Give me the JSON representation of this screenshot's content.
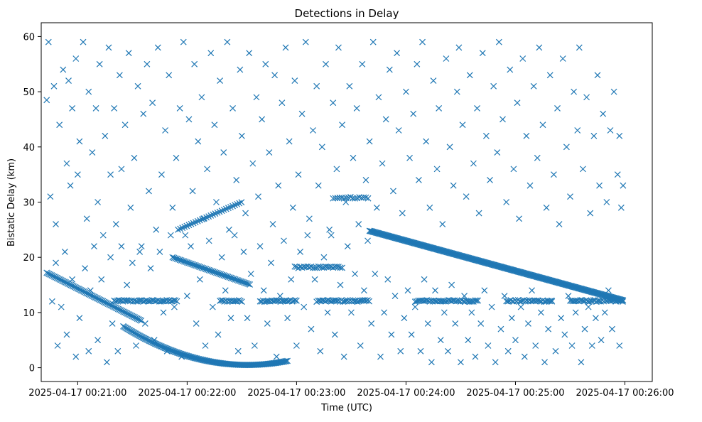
{
  "chart_data": {
    "type": "scatter",
    "title": "Detections in Delay",
    "xlabel": "Time (UTC)",
    "ylabel": "Bistatic Delay (km)",
    "marker": "x",
    "color": "#1f77b4",
    "xlim_seconds": [
      -20,
      315
    ],
    "ylim": [
      -2.5,
      62.5
    ],
    "x_ticks": [
      {
        "t": 0,
        "label": "2025-04-17 00:21:00"
      },
      {
        "t": 60,
        "label": "2025-04-17 00:22:00"
      },
      {
        "t": 120,
        "label": "2025-04-17 00:23:00"
      },
      {
        "t": 180,
        "label": "2025-04-17 00:24:00"
      },
      {
        "t": 240,
        "label": "2025-04-17 00:25:00"
      },
      {
        "t": 300,
        "label": "2025-04-17 00:26:00"
      }
    ],
    "y_ticks": [
      0,
      10,
      20,
      30,
      40,
      50,
      60
    ],
    "x_range_seconds_of_data": [
      -17,
      299
    ],
    "x_unit_note": "t = seconds after 2025-04-17 00:21:00 UTC",
    "tracks": [
      {
        "name": "descending track A",
        "x_start": -17,
        "x_end": 35,
        "y_start": 17.2,
        "y_end": 8.5,
        "step": 0.7
      },
      {
        "name": "U-shaped track",
        "x_start": 25,
        "x_end": 115,
        "y_min": 0.5,
        "x_vertex": 93,
        "y_at_start": 7.5,
        "step": 0.6
      },
      {
        "name": "descending track B",
        "x_start": 52,
        "x_end": 95,
        "y_start": 20,
        "y_end": 15,
        "step": 0.8
      },
      {
        "name": "rising track",
        "x_start": 55,
        "x_end": 90,
        "y_start": 25,
        "y_end": 30,
        "step": 1.2
      },
      {
        "name": "long descending track",
        "x_start": 160,
        "x_end": 299,
        "y_start": 24.8,
        "y_end": 12.2,
        "step": 0.5
      },
      {
        "name": "flat track at 12 km",
        "x_start": 20,
        "x_end": 299,
        "y": 12.1,
        "segments": [
          [
            20,
            55
          ],
          [
            78,
            90
          ],
          [
            100,
            120
          ],
          [
            131,
            160
          ],
          [
            185,
            220
          ],
          [
            235,
            260
          ],
          [
            270,
            299
          ]
        ],
        "step": 0.8
      },
      {
        "name": "flat track at 18 km",
        "x_start": 119,
        "x_end": 145,
        "y": 18.2,
        "step": 1.0
      },
      {
        "name": "flat track at 31 km",
        "x_start": 140,
        "x_end": 160,
        "y": 30.8,
        "step": 1.2
      }
    ],
    "noise_points": [
      [
        -17,
        48.5
      ],
      [
        -16,
        59
      ],
      [
        -15,
        31
      ],
      [
        -13,
        51
      ],
      [
        -12,
        26
      ],
      [
        -10,
        44
      ],
      [
        -8,
        54
      ],
      [
        -6,
        37
      ],
      [
        -5,
        52
      ],
      [
        -4,
        33
      ],
      [
        -3,
        47
      ],
      [
        -1,
        56
      ],
      [
        0,
        35
      ],
      [
        1,
        41
      ],
      [
        3,
        59
      ],
      [
        5,
        27
      ],
      [
        6,
        50
      ],
      [
        8,
        39
      ],
      [
        10,
        47
      ],
      [
        11,
        30
      ],
      [
        12,
        55
      ],
      [
        14,
        24
      ],
      [
        15,
        42
      ],
      [
        17,
        58
      ],
      [
        18,
        35
      ],
      [
        20,
        47
      ],
      [
        21,
        26
      ],
      [
        23,
        53
      ],
      [
        24,
        36
      ],
      [
        26,
        44
      ],
      [
        28,
        57
      ],
      [
        29,
        29
      ],
      [
        31,
        38
      ],
      [
        33,
        51
      ],
      [
        34,
        21
      ],
      [
        36,
        46
      ],
      [
        38,
        55
      ],
      [
        39,
        32
      ],
      [
        41,
        48
      ],
      [
        43,
        25
      ],
      [
        44,
        58
      ],
      [
        46,
        35
      ],
      [
        48,
        43
      ],
      [
        50,
        53
      ],
      [
        52,
        29
      ],
      [
        54,
        38
      ],
      [
        56,
        47
      ],
      [
        58,
        59
      ],
      [
        59,
        24
      ],
      [
        61,
        45
      ],
      [
        63,
        32
      ],
      [
        64,
        55
      ],
      [
        66,
        41
      ],
      [
        68,
        49
      ],
      [
        69,
        27
      ],
      [
        71,
        36
      ],
      [
        73,
        57
      ],
      [
        75,
        44
      ],
      [
        76,
        30
      ],
      [
        78,
        52
      ],
      [
        80,
        39
      ],
      [
        82,
        59
      ],
      [
        83,
        25
      ],
      [
        85,
        47
      ],
      [
        87,
        34
      ],
      [
        89,
        54
      ],
      [
        90,
        42
      ],
      [
        92,
        28
      ],
      [
        94,
        57
      ],
      [
        96,
        37
      ],
      [
        98,
        49
      ],
      [
        99,
        31
      ],
      [
        101,
        45
      ],
      [
        103,
        55
      ],
      [
        105,
        39
      ],
      [
        107,
        26
      ],
      [
        108,
        53
      ],
      [
        110,
        33
      ],
      [
        112,
        48
      ],
      [
        114,
        58
      ],
      [
        116,
        41
      ],
      [
        118,
        29
      ],
      [
        119,
        52
      ],
      [
        121,
        35
      ],
      [
        123,
        46
      ],
      [
        125,
        59
      ],
      [
        127,
        27
      ],
      [
        129,
        43
      ],
      [
        131,
        51
      ],
      [
        132,
        33
      ],
      [
        134,
        40
      ],
      [
        136,
        55
      ],
      [
        138,
        25
      ],
      [
        140,
        48
      ],
      [
        142,
        36
      ],
      [
        143,
        58
      ],
      [
        145,
        44
      ],
      [
        147,
        30
      ],
      [
        149,
        51
      ],
      [
        151,
        38
      ],
      [
        153,
        47
      ],
      [
        154,
        26
      ],
      [
        156,
        55
      ],
      [
        158,
        34
      ],
      [
        160,
        41
      ],
      [
        162,
        59
      ],
      [
        164,
        29
      ],
      [
        165,
        49
      ],
      [
        167,
        37
      ],
      [
        169,
        45
      ],
      [
        171,
        54
      ],
      [
        173,
        32
      ],
      [
        175,
        57
      ],
      [
        176,
        43
      ],
      [
        178,
        28
      ],
      [
        180,
        50
      ],
      [
        182,
        38
      ],
      [
        184,
        46
      ],
      [
        186,
        55
      ],
      [
        187,
        34
      ],
      [
        189,
        59
      ],
      [
        191,
        41
      ],
      [
        193,
        29
      ],
      [
        195,
        52
      ],
      [
        197,
        36
      ],
      [
        198,
        47
      ],
      [
        200,
        26
      ],
      [
        202,
        56
      ],
      [
        204,
        40
      ],
      [
        206,
        33
      ],
      [
        208,
        50
      ],
      [
        209,
        58
      ],
      [
        211,
        44
      ],
      [
        213,
        31
      ],
      [
        215,
        53
      ],
      [
        217,
        37
      ],
      [
        219,
        47
      ],
      [
        220,
        28
      ],
      [
        222,
        57
      ],
      [
        224,
        42
      ],
      [
        226,
        34
      ],
      [
        228,
        51
      ],
      [
        230,
        39
      ],
      [
        231,
        59
      ],
      [
        233,
        45
      ],
      [
        235,
        30
      ],
      [
        237,
        54
      ],
      [
        239,
        36
      ],
      [
        241,
        48
      ],
      [
        242,
        27
      ],
      [
        244,
        56
      ],
      [
        246,
        42
      ],
      [
        248,
        33
      ],
      [
        250,
        51
      ],
      [
        252,
        38
      ],
      [
        253,
        58
      ],
      [
        255,
        44
      ],
      [
        257,
        29
      ],
      [
        259,
        53
      ],
      [
        261,
        35
      ],
      [
        263,
        47
      ],
      [
        264,
        26
      ],
      [
        266,
        56
      ],
      [
        268,
        40
      ],
      [
        270,
        31
      ],
      [
        272,
        50
      ],
      [
        274,
        43
      ],
      [
        275,
        58
      ],
      [
        277,
        36
      ],
      [
        279,
        49
      ],
      [
        281,
        28
      ],
      [
        283,
        42
      ],
      [
        285,
        53
      ],
      [
        286,
        33
      ],
      [
        288,
        46
      ],
      [
        290,
        30
      ],
      [
        292,
        43
      ],
      [
        294,
        50
      ],
      [
        296,
        35
      ],
      [
        297,
        42
      ],
      [
        298,
        29
      ],
      [
        299,
        33
      ],
      [
        -14,
        12
      ],
      [
        -12,
        19
      ],
      [
        -11,
        4
      ],
      [
        -9,
        11
      ],
      [
        -7,
        21
      ],
      [
        -6,
        6
      ],
      [
        -3,
        16
      ],
      [
        -1,
        2
      ],
      [
        1,
        9
      ],
      [
        4,
        18
      ],
      [
        6,
        3
      ],
      [
        7,
        14
      ],
      [
        9,
        22
      ],
      [
        11,
        5
      ],
      [
        13,
        16
      ],
      [
        16,
        1
      ],
      [
        18,
        20
      ],
      [
        19,
        8
      ],
      [
        22,
        3
      ],
      [
        24,
        22
      ],
      [
        27,
        15
      ],
      [
        30,
        19
      ],
      [
        32,
        4
      ],
      [
        35,
        22
      ],
      [
        37,
        8
      ],
      [
        40,
        18
      ],
      [
        42,
        5
      ],
      [
        45,
        21
      ],
      [
        47,
        10
      ],
      [
        49,
        3
      ],
      [
        51,
        24
      ],
      [
        53,
        11
      ],
      [
        57,
        2
      ],
      [
        60,
        13
      ],
      [
        62,
        22
      ],
      [
        65,
        8
      ],
      [
        67,
        16
      ],
      [
        70,
        4
      ],
      [
        72,
        23
      ],
      [
        74,
        11
      ],
      [
        77,
        6
      ],
      [
        79,
        20
      ],
      [
        81,
        14
      ],
      [
        84,
        9
      ],
      [
        86,
        24
      ],
      [
        88,
        3
      ],
      [
        91,
        21
      ],
      [
        93,
        9
      ],
      [
        95,
        17
      ],
      [
        97,
        4
      ],
      [
        100,
        22
      ],
      [
        102,
        14
      ],
      [
        104,
        8
      ],
      [
        106,
        19
      ],
      [
        109,
        2
      ],
      [
        111,
        13
      ],
      [
        113,
        23
      ],
      [
        115,
        9
      ],
      [
        117,
        16
      ],
      [
        120,
        4
      ],
      [
        122,
        21
      ],
      [
        124,
        11
      ],
      [
        126,
        24
      ],
      [
        128,
        7
      ],
      [
        130,
        16
      ],
      [
        133,
        3
      ],
      [
        135,
        20
      ],
      [
        137,
        10
      ],
      [
        139,
        24
      ],
      [
        141,
        6
      ],
      [
        144,
        15
      ],
      [
        146,
        2
      ],
      [
        148,
        22
      ],
      [
        150,
        10
      ],
      [
        152,
        17
      ],
      [
        155,
        4
      ],
      [
        157,
        14
      ],
      [
        159,
        23
      ],
      [
        161,
        8
      ],
      [
        163,
        17
      ],
      [
        166,
        2
      ],
      [
        168,
        10
      ],
      [
        170,
        16
      ],
      [
        172,
        6
      ],
      [
        174,
        13
      ],
      [
        177,
        3
      ],
      [
        179,
        9
      ],
      [
        181,
        14
      ],
      [
        183,
        6
      ],
      [
        185,
        11
      ],
      [
        188,
        3
      ],
      [
        190,
        16
      ],
      [
        192,
        8
      ],
      [
        194,
        1
      ],
      [
        196,
        14
      ],
      [
        199,
        5
      ],
      [
        201,
        10
      ],
      [
        203,
        3
      ],
      [
        205,
        15
      ],
      [
        207,
        8
      ],
      [
        210,
        1
      ],
      [
        212,
        13
      ],
      [
        214,
        5
      ],
      [
        216,
        10
      ],
      [
        218,
        2
      ],
      [
        221,
        8
      ],
      [
        223,
        14
      ],
      [
        225,
        4
      ],
      [
        227,
        11
      ],
      [
        229,
        1
      ],
      [
        232,
        7
      ],
      [
        234,
        13
      ],
      [
        236,
        3
      ],
      [
        238,
        9
      ],
      [
        240,
        5
      ],
      [
        243,
        11
      ],
      [
        245,
        2
      ],
      [
        247,
        8
      ],
      [
        249,
        14
      ],
      [
        251,
        4
      ],
      [
        254,
        10
      ],
      [
        256,
        1
      ],
      [
        258,
        7
      ],
      [
        260,
        12
      ],
      [
        262,
        3
      ],
      [
        265,
        9
      ],
      [
        267,
        6
      ],
      [
        269,
        13
      ],
      [
        271,
        4
      ],
      [
        273,
        10
      ],
      [
        276,
        1
      ],
      [
        278,
        7
      ],
      [
        280,
        11
      ],
      [
        282,
        4
      ],
      [
        284,
        9
      ],
      [
        287,
        5
      ],
      [
        289,
        10
      ],
      [
        291,
        14
      ],
      [
        293,
        7
      ],
      [
        295,
        12
      ],
      [
        297,
        4
      ]
    ]
  }
}
